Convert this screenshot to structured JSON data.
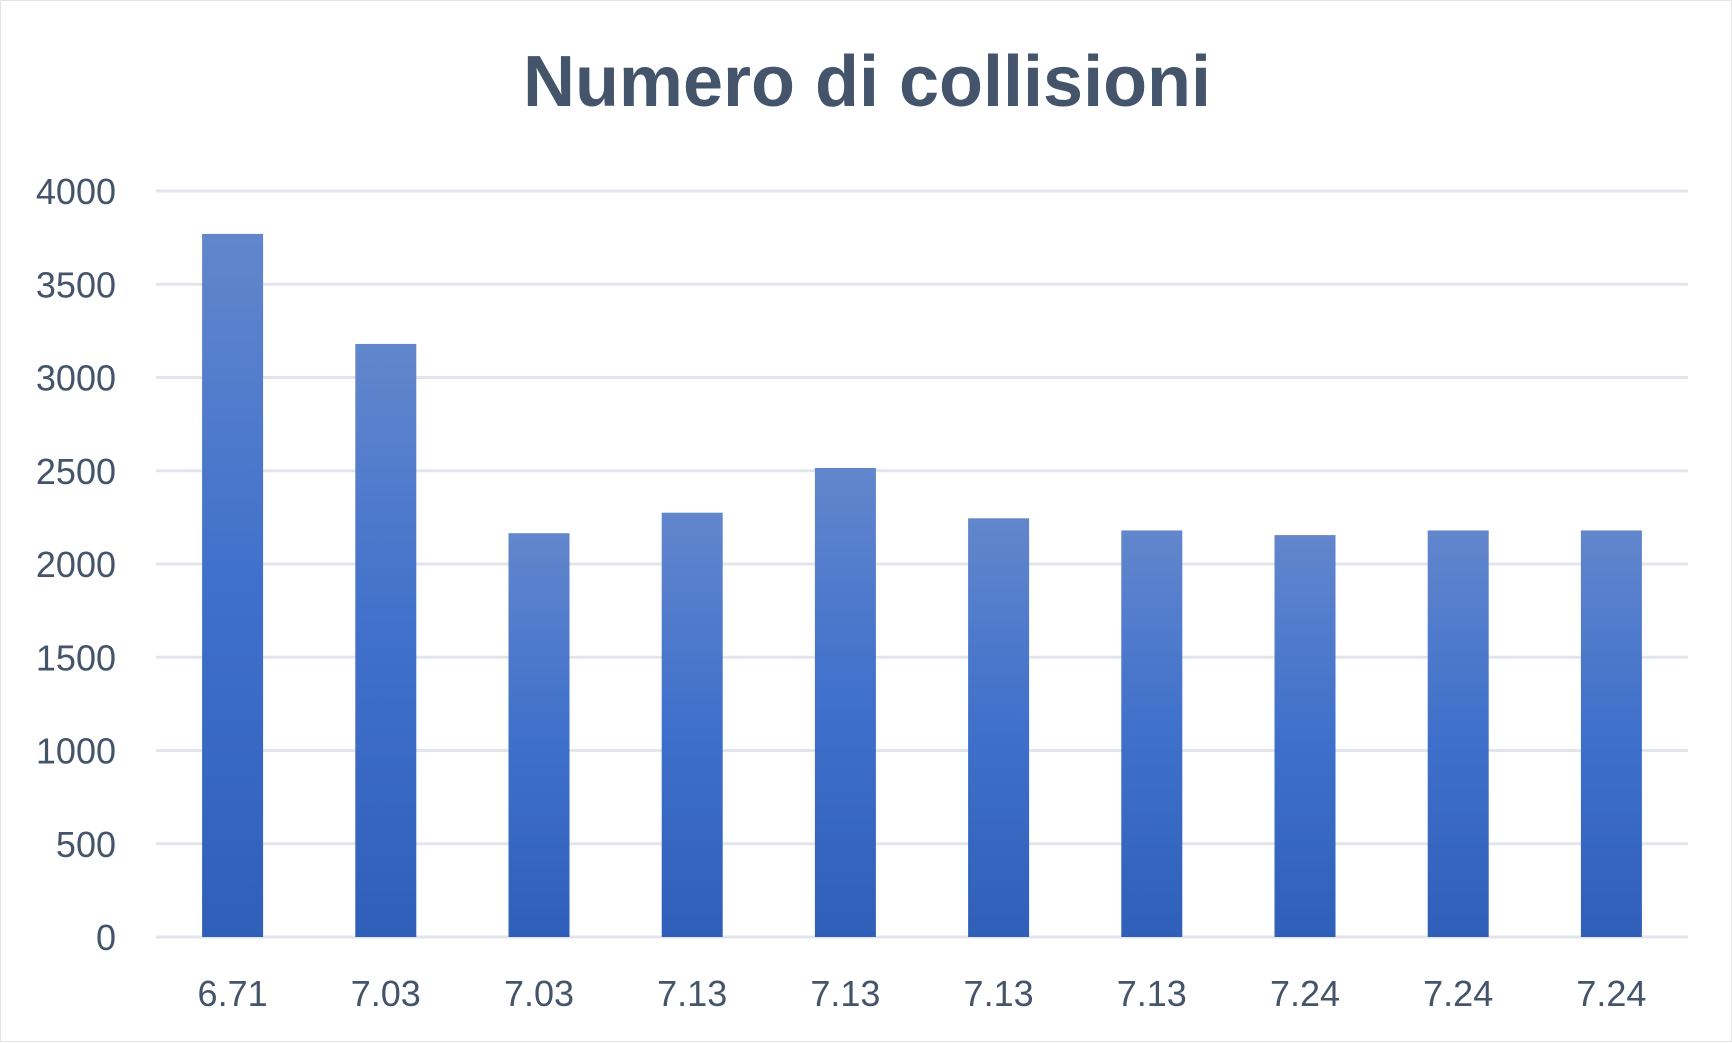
{
  "chart_data": {
    "type": "bar",
    "title": "Numero di collisioni",
    "xlabel": "",
    "ylabel": "",
    "categories": [
      "6.71",
      "7.03",
      "7.03",
      "7.13",
      "7.13",
      "7.13",
      "7.13",
      "7.24",
      "7.24",
      "7.24"
    ],
    "values": [
      3770,
      3180,
      2165,
      2275,
      2515,
      2245,
      2180,
      2155,
      2180,
      2180
    ],
    "ylim": [
      0,
      4000
    ],
    "yticks": [
      0,
      500,
      1000,
      1500,
      2000,
      2500,
      3000,
      3500,
      4000
    ],
    "grid": true,
    "legend": "none",
    "colors": {
      "bar_top": "#6286cc",
      "bar_mid": "#3f70cb",
      "bar_bottom": "#2f5fb8",
      "gridline": "#e2e6ec",
      "text": "#44546a"
    }
  }
}
